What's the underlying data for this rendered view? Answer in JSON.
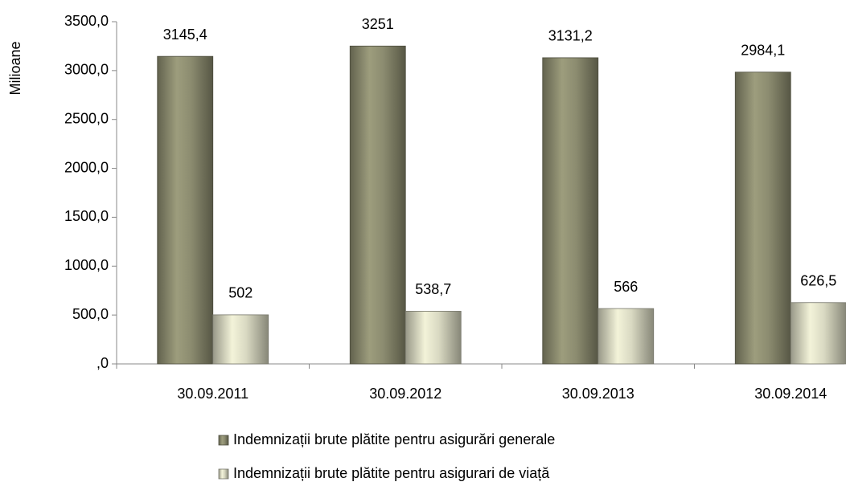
{
  "chart_data": {
    "type": "bar",
    "y_label": "Milioane",
    "categories": [
      "30.09.2011",
      "30.09.2012",
      "30.09.2013",
      "30.09.2014"
    ],
    "series": [
      {
        "name": "Indemnizații brute plătite pentru asigurări generale",
        "color": "#8c8c70",
        "values": [
          3145.4,
          3251,
          3131.2,
          2984.1
        ],
        "value_labels": [
          "3145,4",
          "3251",
          "3131,2",
          "2984,1"
        ]
      },
      {
        "name": "Indemnizații brute plătite pentru asigurari de viață",
        "color": "#d9d9c2",
        "values": [
          502,
          538.7,
          566,
          626.5
        ],
        "value_labels": [
          "502",
          "538,7",
          "566",
          "626,5"
        ]
      }
    ],
    "ylim": [
      0,
      3500
    ],
    "yticks": [
      {
        "value": 0,
        "label": ",0"
      },
      {
        "value": 500,
        "label": "500,0"
      },
      {
        "value": 1000,
        "label": "1000,0"
      },
      {
        "value": 1500,
        "label": "1500,0"
      },
      {
        "value": 2000,
        "label": "2000,0"
      },
      {
        "value": 2500,
        "label": "2500,0"
      },
      {
        "value": 3000,
        "label": "3000,0"
      },
      {
        "value": 3500,
        "label": "3500,0"
      }
    ],
    "legend": "bottom"
  }
}
